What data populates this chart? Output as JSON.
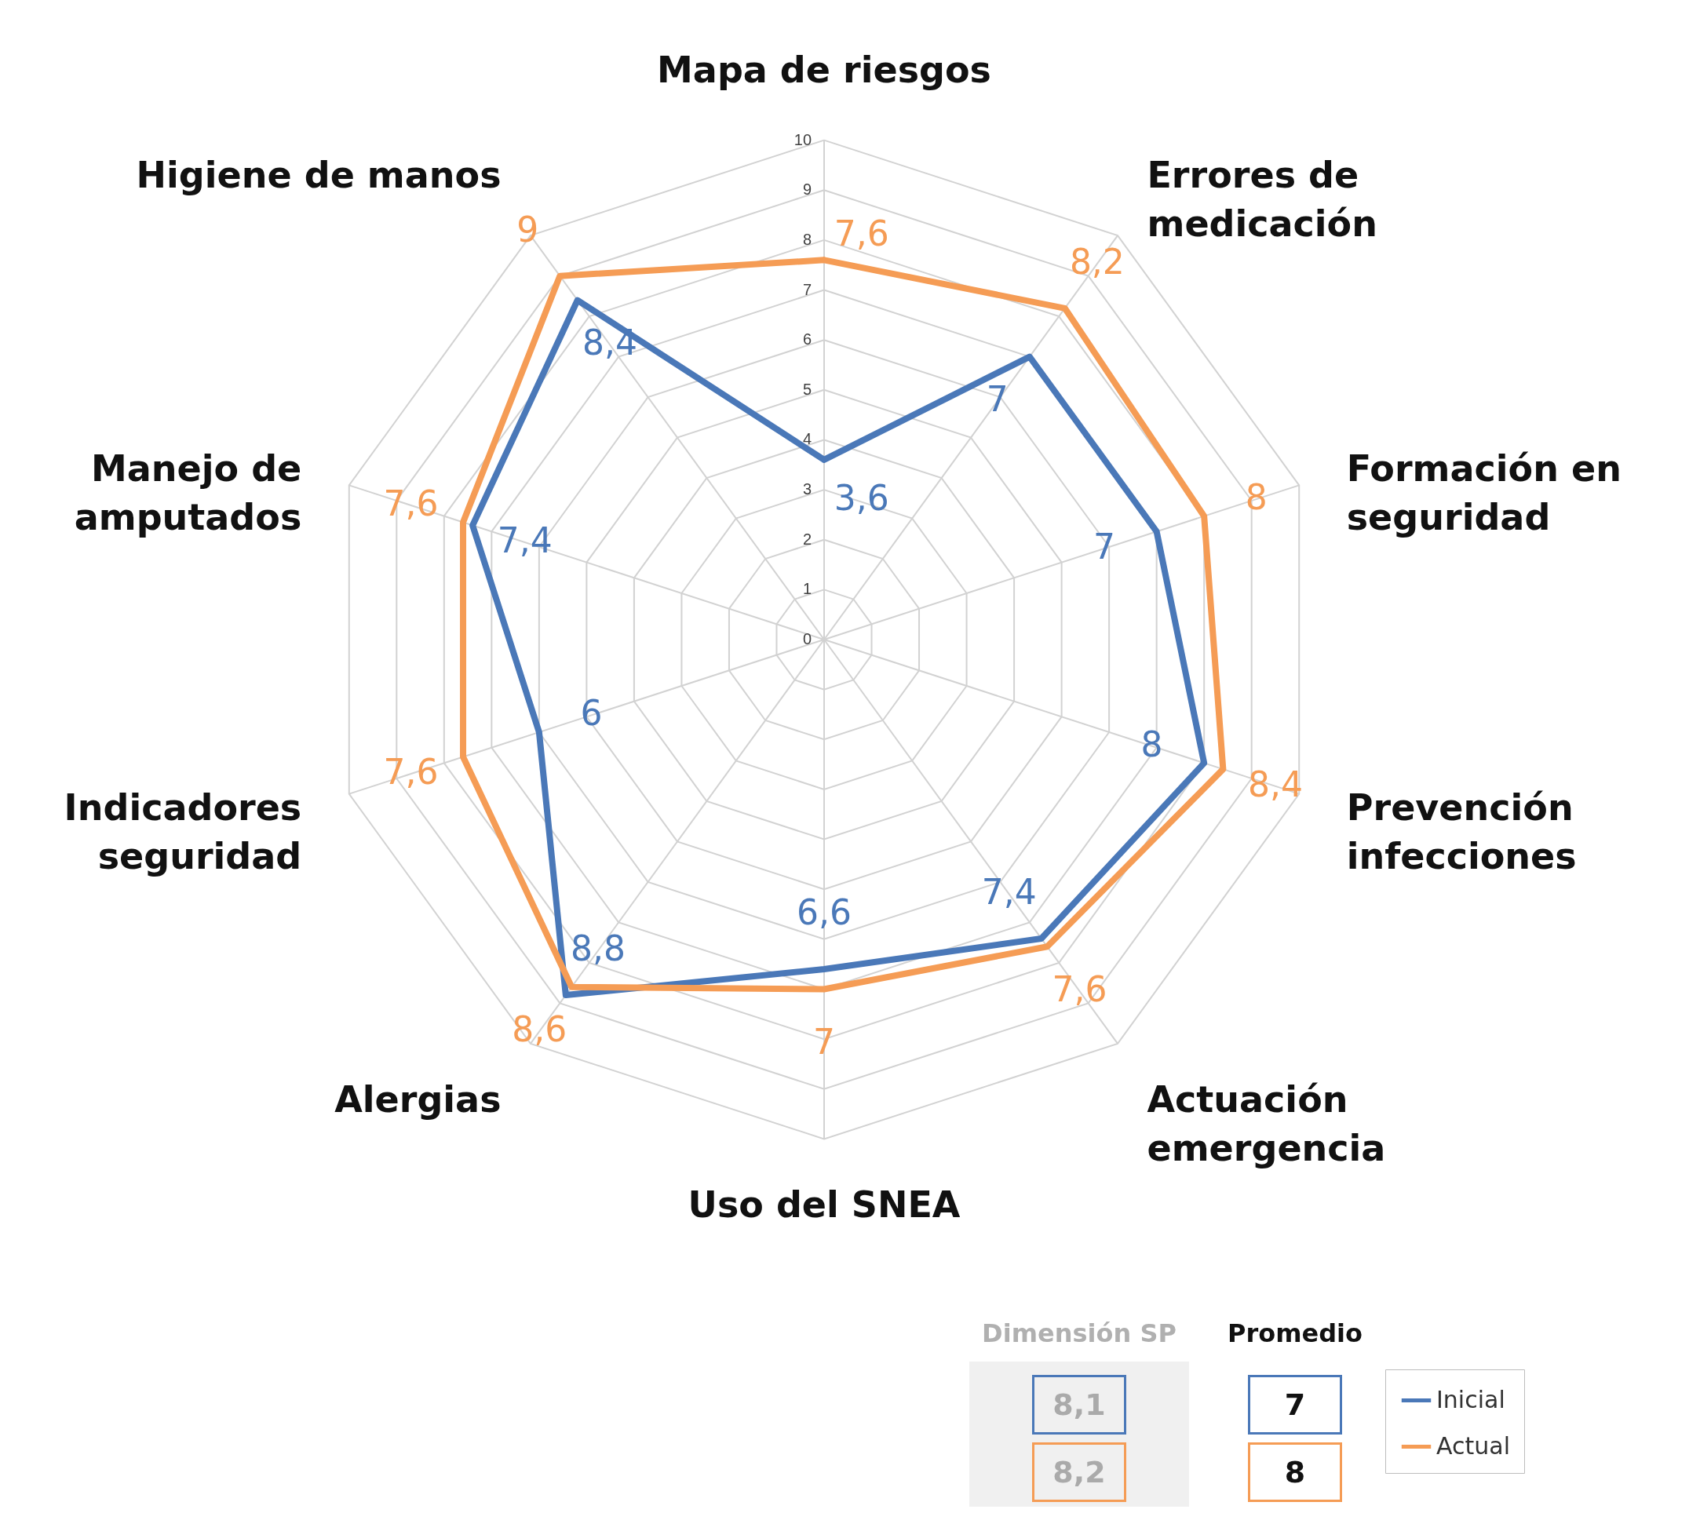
{
  "chart_data": {
    "type": "radar",
    "categories": [
      "Mapa de riesgos",
      "Errores de medicación",
      "Formación en seguridad",
      "Prevención infecciones",
      "Actuación emergencia",
      "Uso del SNEA",
      "Alergias",
      "Indicadores seguridad",
      "Manejo de amputados",
      "Higiene de manos"
    ],
    "series": [
      {
        "name": "Inicial",
        "color": "#4a78b8",
        "values": [
          3.6,
          7,
          7,
          8,
          7.4,
          6.6,
          8.8,
          6,
          7.4,
          8.4
        ],
        "value_labels": [
          "3,6",
          "7",
          "7",
          "8",
          "7,4",
          "6,6",
          "8,8",
          "6",
          "7,4",
          "8,4"
        ]
      },
      {
        "name": "Actual",
        "color": "#f59c55",
        "values": [
          7.6,
          8.2,
          8,
          8.4,
          7.6,
          7,
          8.6,
          7.6,
          7.6,
          9
        ],
        "value_labels": [
          "7,6",
          "8,2",
          "8",
          "8,4",
          "7,6",
          "7",
          "8,6",
          "7,6",
          "7,6",
          "9"
        ]
      }
    ],
    "ylim": [
      0,
      10
    ],
    "yticks": [
      0,
      1,
      2,
      3,
      4,
      5,
      6,
      7,
      8,
      9,
      10
    ],
    "grid": true,
    "legend": "bottom right",
    "annotations": [
      "Dimensión SP",
      "8,1",
      "8,2",
      "Promedio",
      "7",
      "8"
    ]
  }
}
